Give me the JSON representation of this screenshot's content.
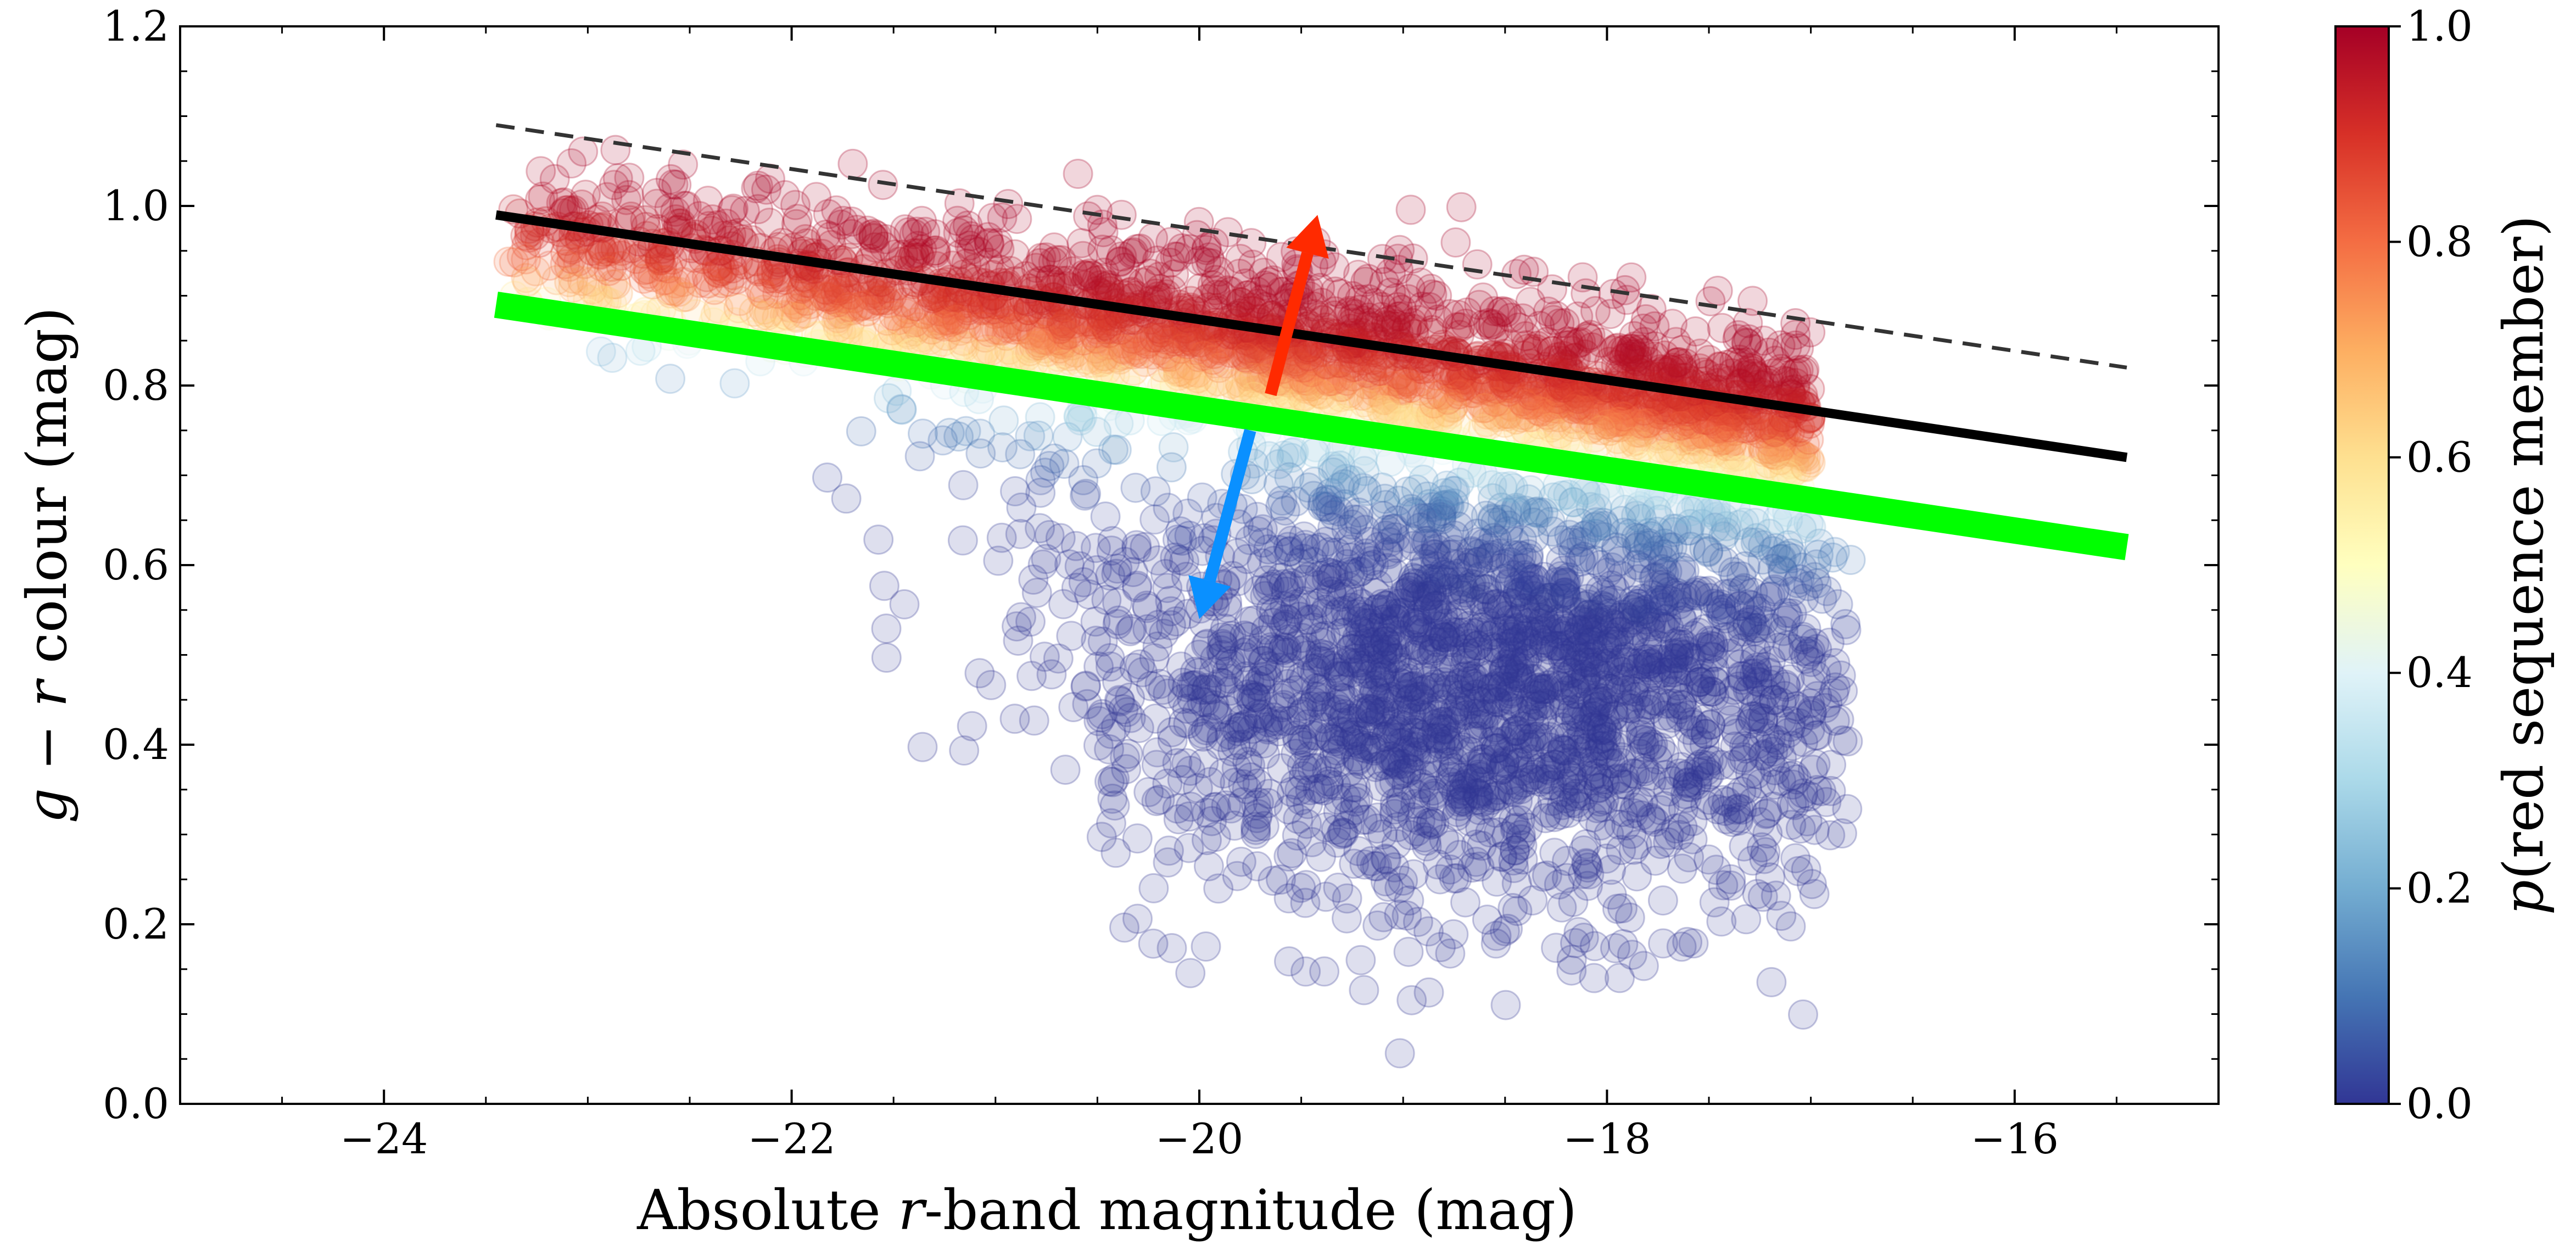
{
  "chart_data": {
    "type": "scatter",
    "xlabel_parts": [
      "Absolute ",
      "r",
      "-band magnitude (mag)"
    ],
    "ylabel_parts": [
      "g",
      " − ",
      "r",
      " colour (mag)"
    ],
    "xlim": [
      -25.0,
      -15.0
    ],
    "ylim": [
      0.0,
      1.2
    ],
    "x_ticks": [
      -24,
      -22,
      -20,
      -18,
      -16
    ],
    "x_tick_labels": [
      "−24",
      "−22",
      "−20",
      "−18",
      "−16"
    ],
    "y_ticks": [
      0.0,
      0.2,
      0.4,
      0.6,
      0.8,
      1.0,
      1.2
    ],
    "y_tick_labels": [
      "0.0",
      "0.2",
      "0.4",
      "0.6",
      "0.8",
      "1.0",
      "1.2"
    ],
    "colorbar": {
      "label_parts": [
        "p",
        "(red sequence member)"
      ],
      "range": [
        0.0,
        1.0
      ],
      "ticks": [
        0.0,
        0.2,
        0.4,
        0.6,
        0.8,
        1.0
      ],
      "tick_labels": [
        "0.0",
        "0.2",
        "0.4",
        "0.6",
        "0.8",
        "1.0"
      ],
      "colormap": "RdYlBu_r",
      "colors": [
        "#313695",
        "#4575b4",
        "#74add1",
        "#abd9e9",
        "#e0f3f8",
        "#ffffbf",
        "#fee090",
        "#fdae61",
        "#f46d43",
        "#d73027",
        "#a50026"
      ]
    },
    "lines": [
      {
        "style": "solid",
        "color": "#000000",
        "x": [
          -23.45,
          -15.45
        ],
        "y": [
          0.99,
          0.72
        ]
      },
      {
        "style": "dashed",
        "color": "#333333",
        "x": [
          -23.45,
          -15.45
        ],
        "y": [
          1.09,
          0.82
        ]
      },
      {
        "style": "solid-thick",
        "color": "#00ff00",
        "x": [
          -23.45,
          -15.45
        ],
        "y": [
          0.89,
          0.62
        ]
      }
    ],
    "arrows": [
      {
        "color": "#ff2a00",
        "from": [
          -19.65,
          0.79
        ],
        "to": [
          -19.42,
          0.99
        ]
      },
      {
        "color": "#0a90ff",
        "from": [
          -19.75,
          0.75
        ],
        "to": [
          -20.0,
          0.54
        ]
      }
    ],
    "point_clouds": [
      {
        "membership_probability": 0.9,
        "x_range": [
          -23.4,
          -17.0
        ],
        "trend": {
          "x": [
            -23.5,
            -15.5
          ],
          "y": [
            1.0,
            0.74
          ]
        },
        "scatter": 0.05,
        "count": 2400
      },
      {
        "membership_probability": 0.02,
        "x_range": [
          -22.0,
          -16.8
        ],
        "y_range": [
          0.05,
          0.8
        ],
        "center": [
          -18.5,
          0.5
        ],
        "count": 2400
      }
    ]
  }
}
